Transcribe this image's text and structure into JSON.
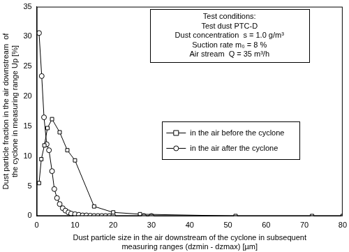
{
  "chart_data": {
    "type": "line",
    "x_label": [
      "Dust particle size in the air downstream of the cyclone in subsequent",
      "measuring ranges (dzmin - dzmax) [µm]"
    ],
    "y_label": [
      "Dust particle fraction in the air downstream  of",
      "the cyclone in measuring range Up [%]"
    ],
    "annotation": [
      "Test conditions:",
      "Test dust PTC-D",
      "Dust concentration  s = 1.0 g/m³",
      "Suction rate m₀ = 8 %",
      "Air stream  Q = 35 m³/h"
    ],
    "xlim": [
      0,
      80
    ],
    "xticks": [
      0,
      10,
      20,
      30,
      40,
      50,
      60,
      70,
      80
    ],
    "ylim": [
      0,
      35
    ],
    "yticks": [
      0,
      5,
      10,
      15,
      20,
      25,
      30,
      35
    ],
    "grid": false,
    "legend": "right",
    "series": [
      {
        "name": "in the air before the cyclone",
        "color": "#000000",
        "marker": "square",
        "line_style": "solid",
        "x": [
          0.6,
          1.2,
          2.0,
          2.8,
          4.0,
          6.0,
          8.0,
          10.0,
          15.0,
          20.0,
          27.0,
          52.0,
          72.0,
          80.0
        ],
        "values": [
          5.5,
          9.5,
          11.8,
          14.7,
          16.2,
          14.0,
          11.0,
          9.3,
          1.6,
          0.6,
          0.3,
          0,
          0,
          0
        ]
      },
      {
        "name": "in the air after the cyclone",
        "color": "#000000",
        "marker": "circle",
        "line_style": "solid",
        "x": [
          0.6,
          1.3,
          1.9,
          2.6,
          3.2,
          4.0,
          4.6,
          5.3,
          6.0,
          6.8,
          7.5,
          8.3,
          9.0,
          10.0,
          11.0,
          12.0,
          13.0,
          14.0,
          15.0,
          16.0,
          17.0,
          18.0,
          19.0,
          20.0,
          28.0,
          30.0
        ],
        "values": [
          30.6,
          23.4,
          16.5,
          12.0,
          11.0,
          7.5,
          4.5,
          3.0,
          2.0,
          1.3,
          0.9,
          0.6,
          0.4,
          0.3,
          0.2,
          0.1,
          0.1,
          0.05,
          0,
          0,
          0,
          0,
          0,
          0,
          0,
          0
        ]
      }
    ]
  }
}
